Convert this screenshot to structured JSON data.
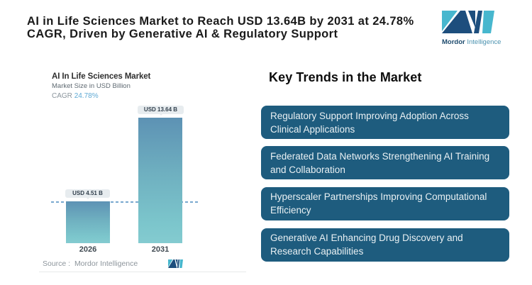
{
  "header": {
    "title_lines": [
      "AI in Life Sciences Market to Reach USD 13.64B by 2031 at 24.78%",
      "CAGR, Driven by Generative AI & Regulatory Support"
    ]
  },
  "brand": {
    "name_primary": "Mordor",
    "name_secondary": "Intelligence",
    "color_navy": "#1d4e7d",
    "color_teal": "#47b7ce"
  },
  "chart_data": {
    "type": "bar",
    "title": "AI In Life Sciences Market",
    "subtitle": "Market Size in USD Billion",
    "cagr_label": "CAGR",
    "cagr_value": "24.78%",
    "categories": [
      "2026",
      "2031"
    ],
    "values": [
      4.51,
      13.64
    ],
    "value_labels": [
      "USD 4.51 B",
      "USD 13.64 B"
    ],
    "ylim": [
      0,
      14
    ],
    "grid": false,
    "reference_line": 4.51,
    "source": "Source :  Mordor Intelligence",
    "bar_gradient_top": "#5d92b4",
    "bar_gradient_bottom": "#84cbd0"
  },
  "trends": {
    "heading": "Key Trends in the Market",
    "items": [
      {
        "lines": [
          "Regulatory Support Improving Adoption Across",
          "Clinical Applications"
        ]
      },
      {
        "lines": [
          "Federated Data Networks Strengthening AI Training",
          "and Collaboration"
        ]
      },
      {
        "lines": [
          "Hyperscaler Partnerships Improving Computational",
          "Efficiency"
        ]
      },
      {
        "lines": [
          "Generative AI Enhancing Drug Discovery and",
          "Research Capabilities"
        ]
      }
    ],
    "box_color": "#1e5c7e"
  }
}
